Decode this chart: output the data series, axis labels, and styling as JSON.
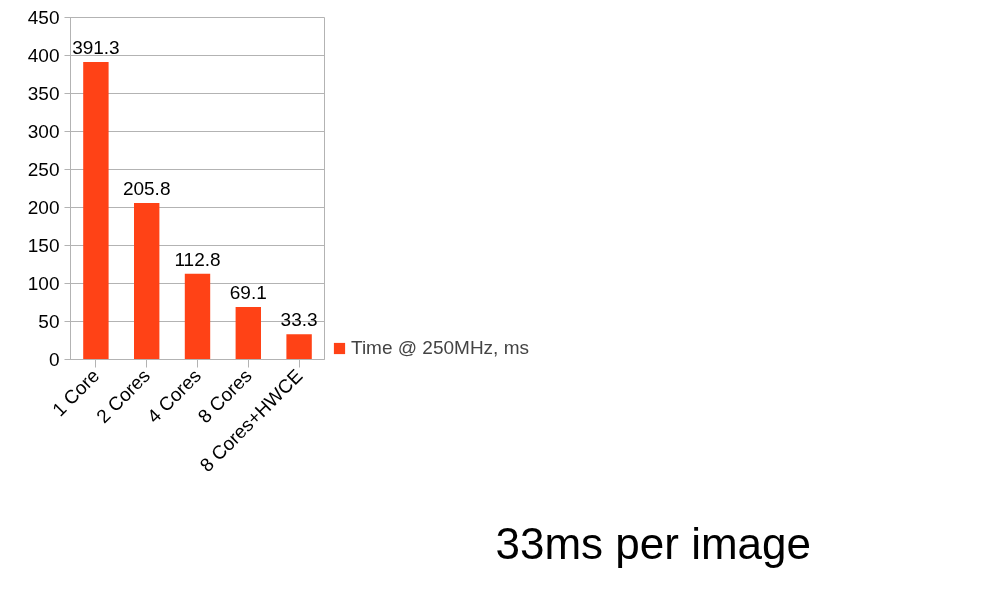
{
  "chart_data": {
    "type": "bar",
    "categories": [
      "1 Core",
      "2 Cores",
      "4 Cores",
      "8 Cores",
      "8 Cores+HWCE"
    ],
    "series": [
      {
        "name": "Time @ 250MHz, ms",
        "color": "#ff4216",
        "values": [
          391.3,
          205.8,
          112.8,
          69.1,
          33.3
        ]
      }
    ],
    "ylim": [
      0,
      450
    ],
    "yticks": [
      0,
      50,
      100,
      150,
      200,
      250,
      300,
      350,
      400,
      450
    ],
    "grid": "y",
    "legend": "right",
    "data_labels": true,
    "annotations": [
      "33ms per image"
    ]
  }
}
